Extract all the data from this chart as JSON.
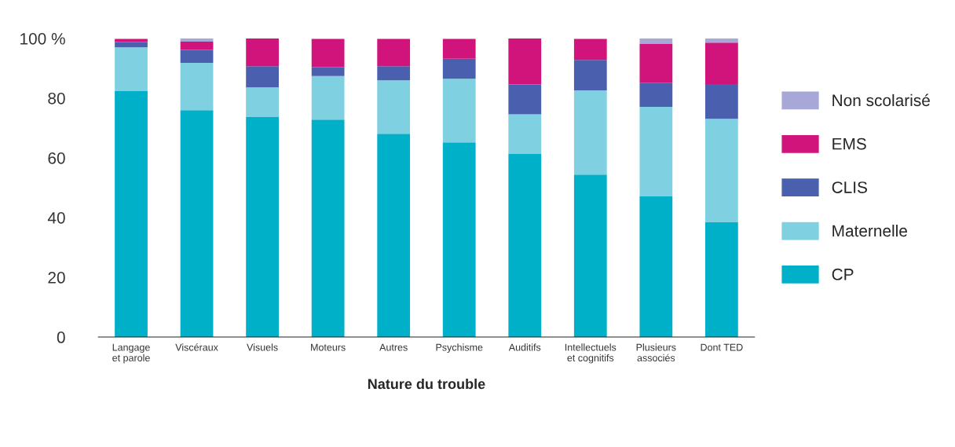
{
  "chart_data": {
    "type": "bar",
    "stacked": true,
    "xlabel": "Nature du trouble",
    "categories": [
      "Langage\net parole",
      "Viscéraux",
      "Visuels",
      "Moteurs",
      "Autres",
      "Psychisme",
      "Auditifs",
      "Intellectuels\net cognitifs",
      "Plusieurs\nassociés",
      "Dont TED"
    ],
    "series": [
      {
        "name": "CP",
        "color": "#00b0c8",
        "values": [
          82.5,
          76.0,
          73.7,
          72.8,
          68.1,
          65.2,
          61.3,
          54.4,
          47.1,
          38.4
        ]
      },
      {
        "name": "Maternelle",
        "color": "#7fd0e0",
        "values": [
          14.5,
          15.8,
          9.9,
          14.6,
          17.9,
          21.3,
          13.3,
          28.2,
          30.0,
          34.7
        ]
      },
      {
        "name": "CLIS",
        "color": "#4a5fae",
        "values": [
          1.8,
          4.4,
          7.1,
          3.0,
          4.7,
          6.7,
          10.0,
          10.2,
          8.1,
          11.6
        ]
      },
      {
        "name": "EMS",
        "color": "#d0147c",
        "values": [
          0.9,
          2.7,
          9.3,
          9.3,
          9.0,
          6.5,
          15.4,
          6.9,
          13.1,
          13.9
        ]
      },
      {
        "name": "Non scolarisé",
        "color": "#a8a8d8",
        "values": [
          0.3,
          1.1,
          0,
          0.3,
          0.3,
          0.3,
          0,
          0.3,
          1.7,
          1.4
        ]
      }
    ],
    "ylim": [
      0,
      100
    ],
    "yticks": [
      0,
      20,
      40,
      60,
      80,
      {
        "value": 100,
        "label": "100 %"
      }
    ],
    "grid": false,
    "legend": "right"
  }
}
